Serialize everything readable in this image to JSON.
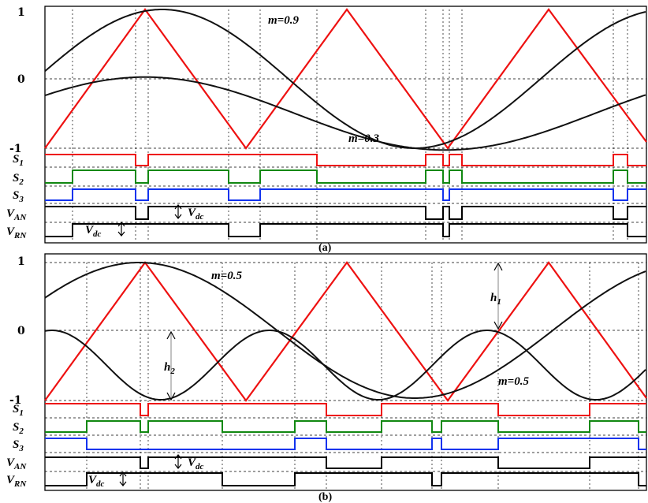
{
  "panels": [
    {
      "id": "a",
      "caption": "(a)",
      "y_ticks": [
        "1",
        "0",
        "-1"
      ],
      "modulation_labels": [
        "m=0.9",
        "m=0.3"
      ],
      "signal_labels": [
        {
          "main": "S",
          "sub": "1"
        },
        {
          "main": "S",
          "sub": "2"
        },
        {
          "main": "S",
          "sub": "3"
        },
        {
          "main": "V",
          "sub": "AN"
        },
        {
          "main": "V",
          "sub": "RN"
        }
      ],
      "vdc_labels": [
        {
          "main": "V",
          "sub": "dc"
        },
        {
          "main": "V",
          "sub": "dc"
        }
      ]
    },
    {
      "id": "b",
      "caption": "(b)",
      "y_ticks": [
        "1",
        "0",
        "-1"
      ],
      "modulation_labels": [
        "m=0.5",
        "m=0.5"
      ],
      "height_labels": [
        {
          "main": "h",
          "sub": "1"
        },
        {
          "main": "h",
          "sub": "2"
        }
      ],
      "signal_labels": [
        {
          "main": "S",
          "sub": "1"
        },
        {
          "main": "S",
          "sub": "2"
        },
        {
          "main": "S",
          "sub": "3"
        },
        {
          "main": "V",
          "sub": "AN"
        },
        {
          "main": "V",
          "sub": "RN"
        }
      ],
      "vdc_labels": [
        {
          "main": "V",
          "sub": "dc"
        },
        {
          "main": "V",
          "sub": "dc"
        }
      ]
    }
  ],
  "colors": {
    "carrier": "#ee1111",
    "reference": "#111111",
    "S1": "#ee1111",
    "S2": "#118811",
    "S3": "#1133ee",
    "VAN": "#000000",
    "VRN": "#000000"
  }
}
